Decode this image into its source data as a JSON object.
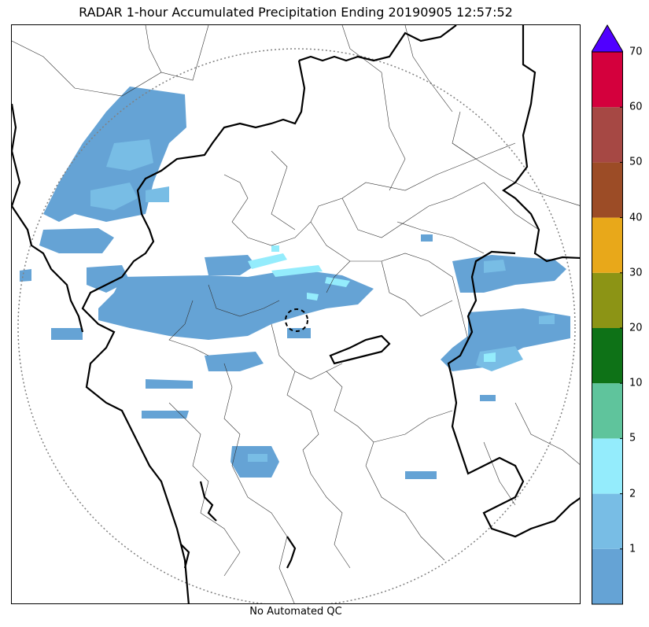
{
  "title": "RADAR 1-hour Accumulated Precipitation Ending 20190905 12:57:52",
  "footer": "No Automated QC",
  "colorbar": {
    "levels": [
      {
        "color": "#65a3d5",
        "from": 0,
        "to": 1
      },
      {
        "color": "#78bde5",
        "from": 1,
        "to": 2
      },
      {
        "color": "#94ecfc",
        "from": 2,
        "to": 5
      },
      {
        "color": "#5fc49c",
        "from": 5,
        "to": 10
      },
      {
        "color": "#0e7217",
        "from": 10,
        "to": 20
      },
      {
        "color": "#8c9415",
        "from": 20,
        "to": 30
      },
      {
        "color": "#e8a81a",
        "from": 30,
        "to": 40
      },
      {
        "color": "#9c4c26",
        "from": 40,
        "to": 50
      },
      {
        "color": "#a64844",
        "from": 50,
        "to": 60
      },
      {
        "color": "#d4003d",
        "from": 60,
        "to": 70
      }
    ],
    "extend_color": "#5000ff",
    "tick_labels": [
      "1",
      "2",
      "5",
      "10",
      "20",
      "30",
      "40",
      "50",
      "60",
      "70"
    ]
  },
  "map_colors": {
    "light_rain": "#65a3d5",
    "moderate_rain": "#78bde5",
    "heavy_rain": "#94ecfc",
    "border_state": "#000000",
    "border_district": "#333333",
    "range_ring": "#808080"
  }
}
